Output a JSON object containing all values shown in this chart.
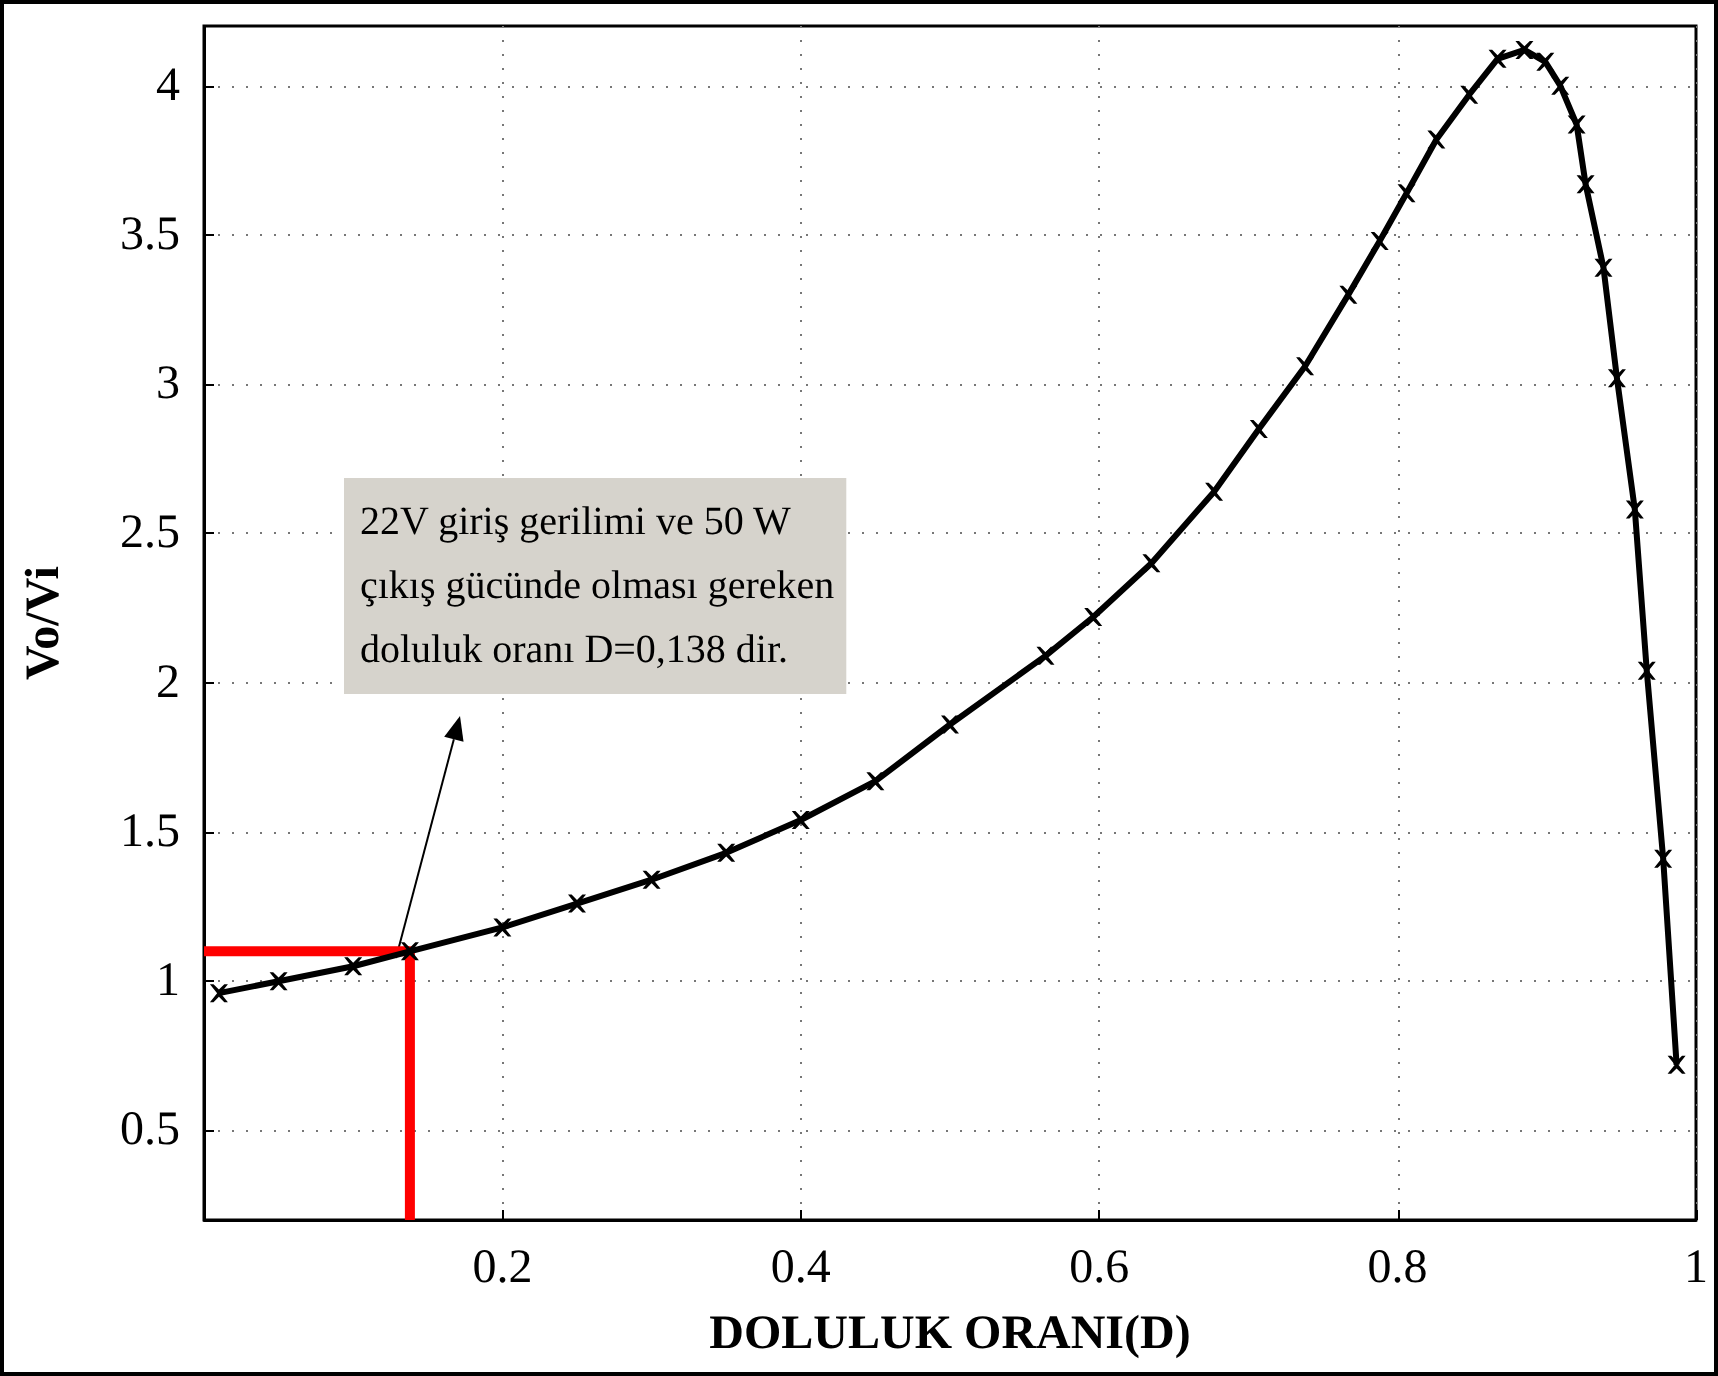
{
  "chart_data": {
    "type": "line",
    "xlabel": "DOLULUK ORANI(D)",
    "ylabel": "Vo/Vi",
    "xlim": [
      0,
      1
    ],
    "xticks": [
      0.2,
      0.4,
      0.6,
      0.8,
      1
    ],
    "ylim": [
      0.2,
      4.2
    ],
    "yticks": [
      0.5,
      1,
      1.5,
      2,
      2.5,
      3,
      3.5,
      4
    ],
    "grid": true,
    "series": [
      {
        "color": "#000000",
        "marker": "cross",
        "x": [
          0.01,
          0.05,
          0.1,
          0.138,
          0.2,
          0.25,
          0.3,
          0.35,
          0.4,
          0.45,
          0.5,
          0.564,
          0.596,
          0.635,
          0.677,
          0.707,
          0.738,
          0.767,
          0.788,
          0.806,
          0.826,
          0.848,
          0.867,
          0.885,
          0.899,
          0.909,
          0.92,
          0.926,
          0.938,
          0.947,
          0.959,
          0.967,
          0.978,
          0.987
        ],
        "values": [
          0.96,
          1.0,
          1.05,
          1.1,
          1.18,
          1.26,
          1.34,
          1.43,
          1.54,
          1.67,
          1.86,
          2.09,
          2.22,
          2.4,
          2.64,
          2.85,
          3.06,
          3.3,
          3.48,
          3.64,
          3.82,
          3.97,
          4.09,
          4.12,
          4.08,
          4.0,
          3.87,
          3.67,
          3.39,
          3.02,
          2.58,
          2.04,
          1.41,
          0.72
        ]
      },
      {
        "color": "#ff0000",
        "marker": "none",
        "x": [
          0,
          0.138,
          0.138
        ],
        "values": [
          1.1,
          1.1,
          0.2
        ]
      }
    ],
    "annotations": [
      "22V giriş gerilimi ve 50 W\nçıkış gücünde olması gereken\ndoluluk oranı D=0,138 dir."
    ]
  }
}
